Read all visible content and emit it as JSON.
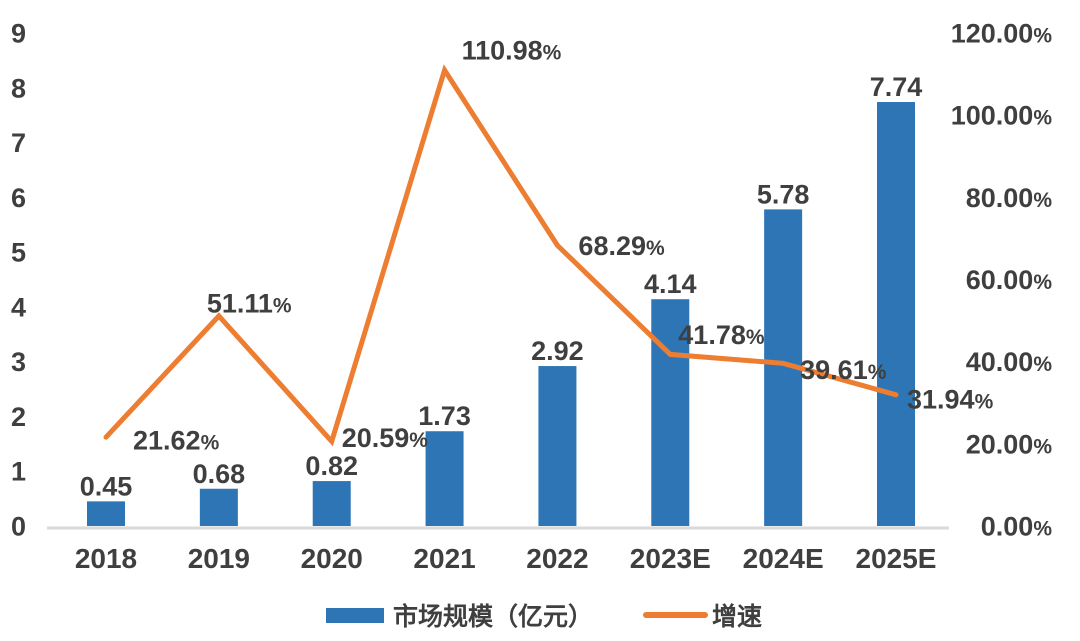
{
  "chart_data": {
    "type": "bar+line",
    "categories": [
      "2018",
      "2019",
      "2020",
      "2021",
      "2022",
      "2023E",
      "2024E",
      "2025E"
    ],
    "series": [
      {
        "name": "市场规模（亿元）",
        "type": "bar",
        "axis": "left",
        "color": "#2E75B6",
        "values": [
          0.45,
          0.68,
          0.82,
          1.73,
          2.92,
          4.14,
          5.78,
          7.74
        ],
        "labels": [
          "0.45",
          "0.68",
          "0.82",
          "1.73",
          "2.92",
          "4.14",
          "5.78",
          "7.74"
        ]
      },
      {
        "name": "增速",
        "type": "line",
        "axis": "right",
        "color": "#ED7D31",
        "values": [
          21.62,
          51.11,
          20.59,
          110.98,
          68.29,
          41.78,
          39.61,
          31.94
        ],
        "labels": [
          "21.62%",
          "51.11%",
          "20.59%",
          "110.98%",
          "68.29%",
          "41.78%",
          "39.61%",
          "31.94%"
        ],
        "label_offsets": [
          [
            27,
            3
          ],
          [
            -12,
            -13
          ],
          [
            10,
            -4
          ],
          [
            17,
            -20
          ],
          [
            21,
            0
          ],
          [
            8,
            -20
          ],
          [
            17,
            6
          ],
          [
            11,
            4
          ]
        ]
      }
    ],
    "left_axis": {
      "min": 0,
      "max": 9,
      "step": 1,
      "ticks": [
        "0",
        "1",
        "2",
        "3",
        "4",
        "5",
        "6",
        "7",
        "8",
        "9"
      ]
    },
    "right_axis": {
      "min": 0,
      "max": 120,
      "step": 20,
      "ticks": [
        "0.00%",
        "20.00%",
        "40.00%",
        "60.00%",
        "80.00%",
        "100.00%",
        "120.00%"
      ]
    },
    "legend": [
      {
        "label": "市场规模（亿元）",
        "color": "#2E75B6",
        "shape": "rect"
      },
      {
        "label": "增速",
        "color": "#ED7D31",
        "shape": "line"
      }
    ],
    "legend_position": "bottom",
    "grid": false,
    "title": "",
    "text_color": "#3F3F3F",
    "axis_line_color": "#D9D9D9",
    "background": "#FFFFFF"
  }
}
